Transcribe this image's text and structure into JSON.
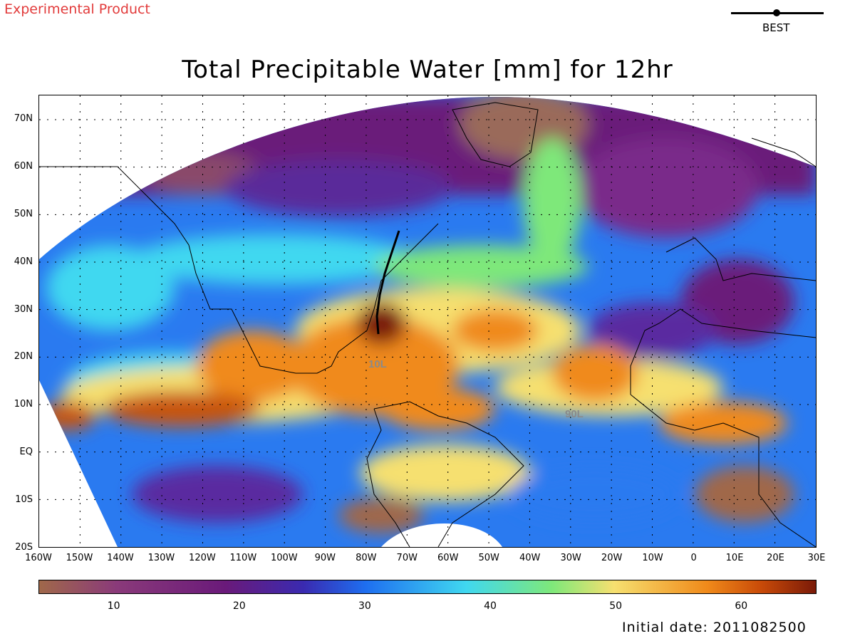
{
  "header": {
    "experimental_label": "Experimental Product",
    "legend_best": "BEST",
    "title": "Total Precipitable Water [mm] for 12hr"
  },
  "map": {
    "lat_ticks": [
      "70N",
      "60N",
      "50N",
      "40N",
      "30N",
      "20N",
      "10N",
      "EQ",
      "10S",
      "20S"
    ],
    "lon_ticks": [
      "160W",
      "150W",
      "140W",
      "130W",
      "120W",
      "110W",
      "100W",
      "90W",
      "80W",
      "70W",
      "60W",
      "50W",
      "40W",
      "30W",
      "20W",
      "10W",
      "0",
      "10E",
      "20E",
      "30E"
    ],
    "storm_labels": [
      "10L",
      "90L"
    ],
    "colors": {
      "dry_brown": "#a0684a",
      "purple": "#6a1a7a",
      "blue": "#1e6ef0",
      "cyan": "#40d8f0",
      "green": "#7ee87a",
      "yellow": "#f6e070",
      "orange": "#f08a1a",
      "dark_red": "#7a1a08"
    }
  },
  "colorbar": {
    "labels": [
      "10",
      "20",
      "30",
      "40",
      "50",
      "60"
    ],
    "min": 4,
    "max": 66
  },
  "footer": {
    "initial_date": "Initial date: 2011082500"
  }
}
